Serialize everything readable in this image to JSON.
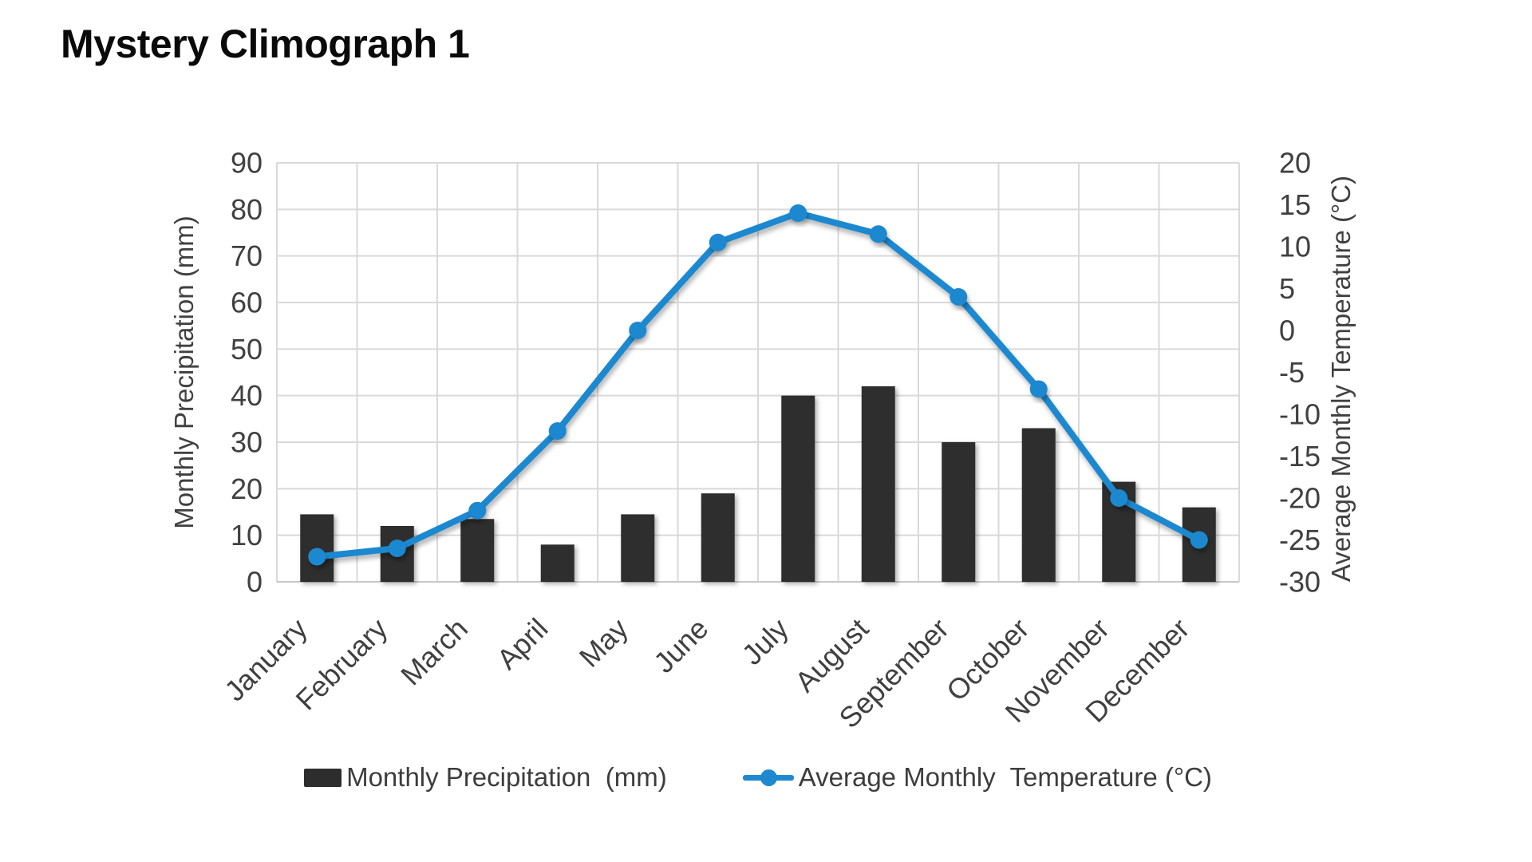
{
  "page": {
    "title": "Mystery Climograph 1"
  },
  "legend": {
    "precipitation_label": "Monthly Precipitation  (mm)",
    "temperature_label": "Average Monthly  Temperature (°C)"
  },
  "chart_data": {
    "type": "combo-bar-line",
    "title": "Mystery Climograph 1",
    "categories": [
      "January",
      "February",
      "March",
      "April",
      "May",
      "June",
      "July",
      "August",
      "September",
      "October",
      "November",
      "December"
    ],
    "series": [
      {
        "name": "Monthly Precipitation  (mm)",
        "type": "bar",
        "axis": "left",
        "color": "#2d2d2d",
        "values": [
          14.5,
          12,
          13.5,
          8,
          14.5,
          19,
          40,
          42,
          30,
          33,
          21.5,
          16
        ]
      },
      {
        "name": "Average Monthly  Temperature (°C)",
        "type": "line",
        "axis": "right",
        "color": "#1f88cf",
        "values": [
          -27,
          -26,
          -21.5,
          -12,
          0,
          10.5,
          14,
          11.5,
          4,
          -7,
          -20,
          -25
        ]
      }
    ],
    "left_axis": {
      "title": "Monthly Precipitation  (mm)",
      "min": 0,
      "max": 90,
      "step": 10
    },
    "right_axis": {
      "title": "Average Monthly  Temperature (°C)",
      "min": -30,
      "max": 20,
      "step": 5
    },
    "gridlines": true,
    "legend_position": "bottom",
    "colors": {
      "grid": "#d9d9d9",
      "axis_line": "#c9c9c9",
      "tick_text": "#404040",
      "axis_title_text": "#404040"
    }
  }
}
